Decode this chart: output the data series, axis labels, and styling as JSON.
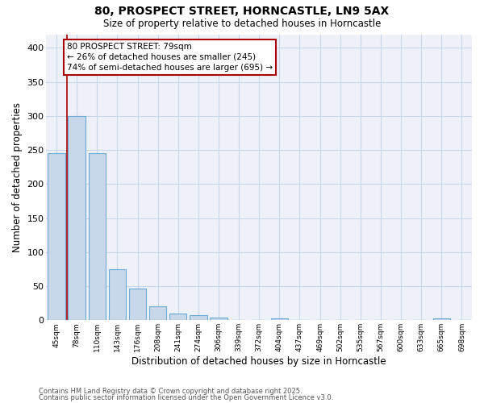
{
  "title1": "80, PROSPECT STREET, HORNCASTLE, LN9 5AX",
  "title2": "Size of property relative to detached houses in Horncastle",
  "xlabel": "Distribution of detached houses by size in Horncastle",
  "ylabel": "Number of detached properties",
  "categories": [
    "45sqm",
    "78sqm",
    "110sqm",
    "143sqm",
    "176sqm",
    "208sqm",
    "241sqm",
    "274sqm",
    "306sqm",
    "339sqm",
    "372sqm",
    "404sqm",
    "437sqm",
    "469sqm",
    "502sqm",
    "535sqm",
    "567sqm",
    "600sqm",
    "633sqm",
    "665sqm",
    "698sqm"
  ],
  "values": [
    245,
    300,
    245,
    75,
    46,
    21,
    10,
    7,
    4,
    0,
    0,
    3,
    0,
    0,
    0,
    0,
    0,
    0,
    0,
    3,
    0
  ],
  "bar_color": "#c8d8ea",
  "bar_edge_color": "#6aaad4",
  "vline_x": 1.0,
  "vline_color": "#aa0000",
  "annotation_text": "80 PROSPECT STREET: 79sqm\n← 26% of detached houses are smaller (245)\n74% of semi-detached houses are larger (695) →",
  "annotation_box_color": "#ffffff",
  "annotation_box_edge": "#aa0000",
  "footnote1": "Contains HM Land Registry data © Crown copyright and database right 2025.",
  "footnote2": "Contains public sector information licensed under the Open Government Licence v3.0.",
  "ylim": [
    0,
    420
  ],
  "yticks": [
    0,
    50,
    100,
    150,
    200,
    250,
    300,
    350,
    400
  ],
  "grid_color": "#c8d8ea",
  "bg_color": "#ffffff",
  "plot_bg_color": "#eef2f8"
}
